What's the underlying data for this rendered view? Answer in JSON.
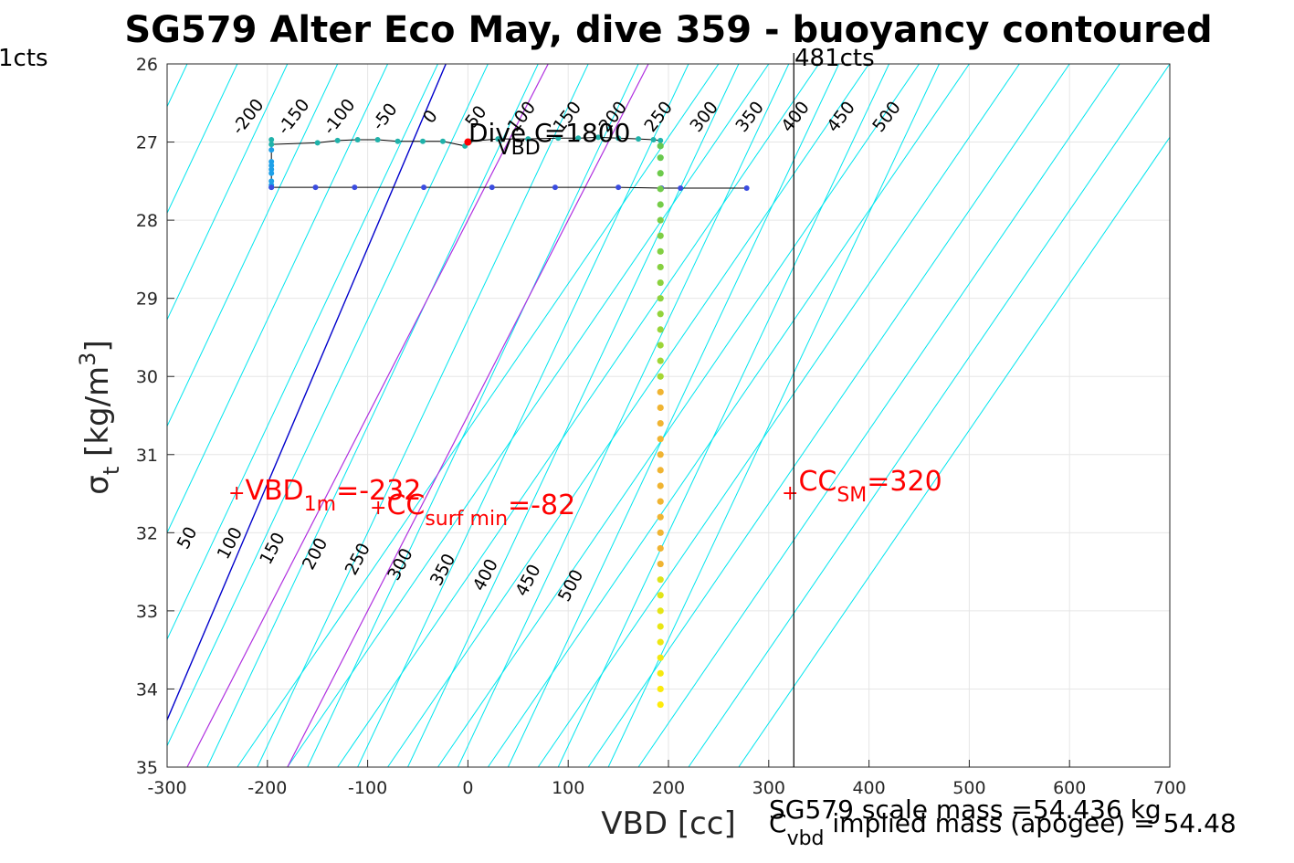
{
  "chart_data": {
    "type": "scatter",
    "title": "SG579 Alter Eco May, dive 359 - buoyancy contoured",
    "xlabel": "VBD [cc]",
    "ylabel": "σ",
    "ylabel_sub": "t",
    "ylabel_units": "[kg/m",
    "ylabel_sup": "3",
    "ylabel_close": "]",
    "xlim": [
      -300,
      700
    ],
    "ylim": [
      26,
      35
    ],
    "y_reversed": true,
    "grid": true,
    "x_ticks": [
      "-300",
      "-200",
      "-100",
      "0",
      "100",
      "200",
      "300",
      "400",
      "500",
      "600",
      "700"
    ],
    "y_ticks": [
      "26",
      "27",
      "28",
      "29",
      "30",
      "31",
      "32",
      "33",
      "34",
      "35"
    ],
    "vertical_line": {
      "x": 325,
      "label": "481cts"
    },
    "left_line_label": "1cts",
    "blue_line": {
      "x_at_26": -22,
      "x_at_35": -320,
      "color": "#0000cc"
    },
    "magenta_lines": [
      {
        "x_at_26": 80,
        "x_at_35": -280,
        "color": "#b030e0"
      },
      {
        "x_at_26": 180,
        "x_at_35": -180,
        "color": "#b030e0"
      }
    ],
    "contour_color": "#00e5ee",
    "contours_upper": {
      "x_at_26_start": -280,
      "spacing": 50,
      "count": 16,
      "slope_x_per_unit": -110,
      "labels": [
        "-200",
        "-150",
        "-100",
        "-50",
        "0",
        "50",
        "100",
        "150",
        "200",
        "250",
        "300",
        "350",
        "400",
        "450",
        "500"
      ]
    },
    "contours_lower": {
      "x_at_35_start": -230,
      "spacing": 50,
      "count": 11,
      "slope_x_per_unit": -40,
      "labels": [
        "50",
        "100",
        "150",
        "200",
        "250",
        "300",
        "350",
        "400",
        "450",
        "500"
      ]
    },
    "annotations": {
      "dive_c_vbd": {
        "prefix": "Dive C",
        "sub": "VBD",
        "suffix": "=1800",
        "x": 0,
        "y": 27
      },
      "vbd_1m": {
        "marker": "+",
        "prefix": "VBD",
        "sub": "1m",
        "suffix": "=-232",
        "x": -232,
        "y": 31.5
      },
      "cc_surf_min": {
        "marker": "+",
        "prefix": "CC",
        "sub": "surf min",
        "suffix": "=-82",
        "x": -82,
        "y": 31.5
      },
      "cc_sm": {
        "marker": "+",
        "prefix": "CC",
        "sub": "SM",
        "suffix": "=320",
        "x": 320,
        "y": 31.5
      }
    },
    "footer": {
      "scale_mass": "SG579 scale mass =54.436 kg",
      "implied_prefix": "C",
      "implied_sub": "vbd",
      "implied_suffix": " implied mass (apogee) = 54.48"
    },
    "series": [
      {
        "name": "",
        "color": "#20b2aa",
        "points": [
          [
            -196,
            26.97
          ],
          [
            -196,
            27.03
          ],
          [
            -150,
            27.01
          ],
          [
            -130,
            26.98
          ],
          [
            -110,
            26.97
          ],
          [
            -90,
            26.97
          ],
          [
            -70,
            26.99
          ],
          [
            -45,
            26.99
          ],
          [
            -25,
            26.99
          ],
          [
            -3,
            27.05
          ],
          [
            2,
            26.99
          ],
          [
            30,
            26.96
          ],
          [
            60,
            26.96
          ],
          [
            90,
            26.95
          ],
          [
            110,
            26.95
          ],
          [
            130,
            26.94
          ],
          [
            150,
            26.95
          ],
          [
            170,
            26.96
          ],
          [
            185,
            26.97
          ],
          [
            192,
            26.98
          ]
        ]
      },
      {
        "name": "",
        "color": "#1ea0e8",
        "points": [
          [
            -196,
            27.1
          ],
          [
            -196,
            27.25
          ],
          [
            -196,
            27.3
          ],
          [
            -196,
            27.35
          ],
          [
            -196,
            27.4
          ],
          [
            -196,
            27.5
          ],
          [
            -196,
            27.55
          ],
          [
            -196,
            27.58
          ]
        ]
      },
      {
        "name": "",
        "color": "#3b4ce0",
        "points": [
          [
            -196,
            27.58
          ],
          [
            -152,
            27.58
          ],
          [
            -113,
            27.58
          ],
          [
            -44,
            27.58
          ],
          [
            24,
            27.58
          ],
          [
            87,
            27.58
          ],
          [
            150,
            27.58
          ],
          [
            193,
            27.59
          ],
          [
            212,
            27.59
          ],
          [
            278,
            27.59
          ]
        ]
      },
      {
        "name": "",
        "color": "#f0e020",
        "points": [
          [
            192,
            27.05
          ],
          [
            192,
            27.2
          ],
          [
            192,
            27.4
          ],
          [
            192,
            27.6
          ],
          [
            192,
            27.8
          ],
          [
            192,
            28.0
          ],
          [
            192,
            28.2
          ],
          [
            192,
            28.4
          ],
          [
            192,
            28.6
          ],
          [
            192,
            28.8
          ],
          [
            192,
            29.0
          ],
          [
            192,
            29.2
          ],
          [
            192,
            29.4
          ],
          [
            192,
            29.6
          ],
          [
            192,
            29.8
          ],
          [
            192,
            30.0
          ],
          [
            192,
            30.2
          ],
          [
            192,
            30.4
          ],
          [
            192,
            30.6
          ],
          [
            192,
            30.8
          ],
          [
            192,
            31.0
          ],
          [
            192,
            31.2
          ],
          [
            192,
            31.4
          ],
          [
            192,
            31.6
          ],
          [
            192,
            31.8
          ],
          [
            192,
            32.0
          ],
          [
            192,
            32.2
          ],
          [
            192,
            32.4
          ],
          [
            192,
            32.6
          ],
          [
            192,
            32.8
          ],
          [
            192,
            33.0
          ],
          [
            192,
            33.2
          ],
          [
            192,
            33.4
          ],
          [
            192,
            33.6
          ],
          [
            192,
            33.8
          ],
          [
            192,
            34.0
          ],
          [
            192,
            34.2
          ]
        ]
      }
    ],
    "marker_red": {
      "x": 0,
      "y": 27.0,
      "color": "#ff0000"
    }
  }
}
